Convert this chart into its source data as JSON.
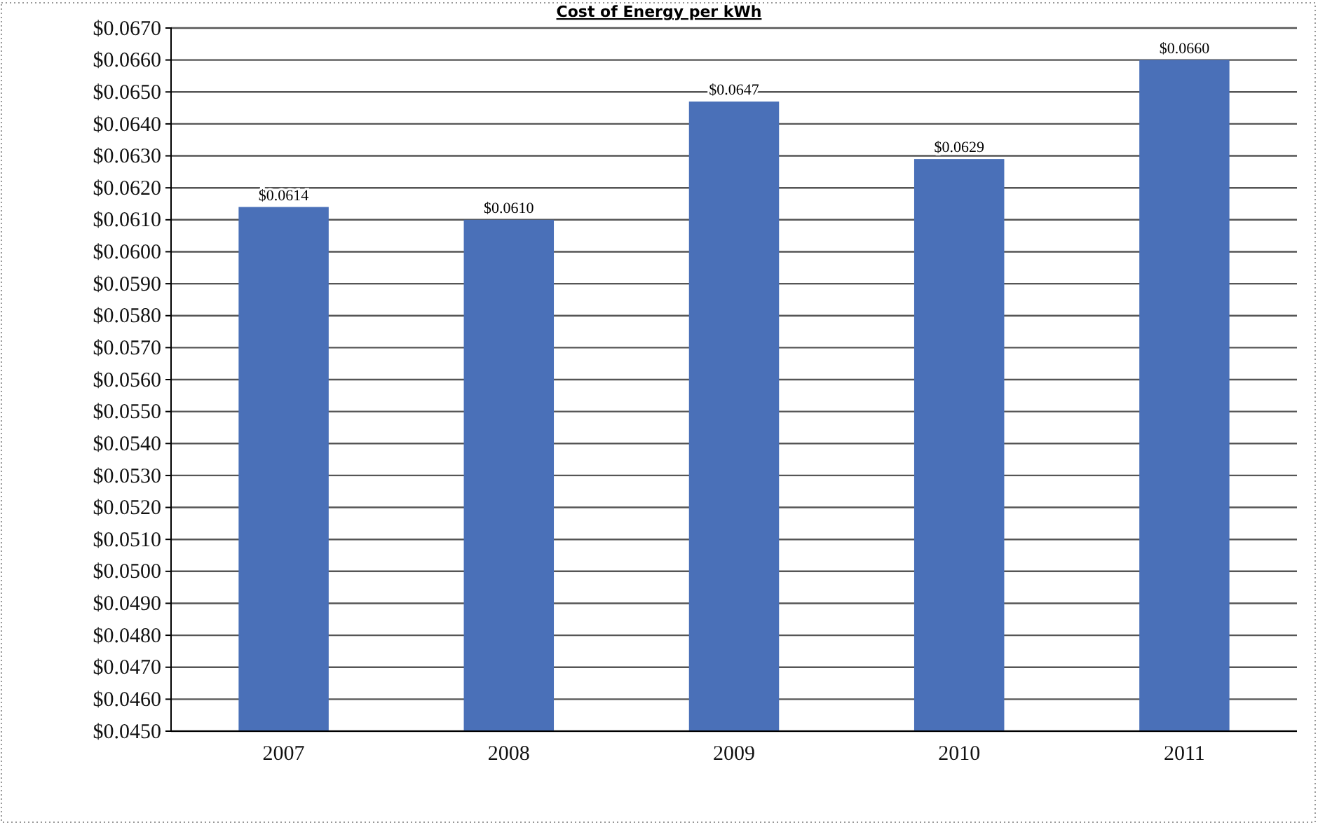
{
  "chart_data": {
    "type": "bar",
    "title": "Cost of Energy per kWh",
    "categories": [
      "2007",
      "2008",
      "2009",
      "2010",
      "2011"
    ],
    "values": [
      0.0614,
      0.061,
      0.0647,
      0.0629,
      0.066
    ],
    "value_labels": [
      "$0.0614",
      "$0.0610",
      "$0.0647",
      "$0.0629",
      "$0.0660"
    ],
    "color": "#4a70b8",
    "ylim": [
      0.045,
      0.067
    ],
    "yticks": [
      {
        "value": 0.045,
        "label": "$0.0450"
      },
      {
        "value": 0.046,
        "label": "$0.0460"
      },
      {
        "value": 0.047,
        "label": "$0.0470"
      },
      {
        "value": 0.048,
        "label": "$0.0480"
      },
      {
        "value": 0.049,
        "label": "$0.0490"
      },
      {
        "value": 0.05,
        "label": "$0.0500"
      },
      {
        "value": 0.051,
        "label": "$0.0510"
      },
      {
        "value": 0.052,
        "label": "$0.0520"
      },
      {
        "value": 0.053,
        "label": "$0.0530"
      },
      {
        "value": 0.054,
        "label": "$0.0540"
      },
      {
        "value": 0.055,
        "label": "$0.0550"
      },
      {
        "value": 0.056,
        "label": "$0.0560"
      },
      {
        "value": 0.057,
        "label": "$0.0570"
      },
      {
        "value": 0.058,
        "label": "$0.0580"
      },
      {
        "value": 0.059,
        "label": "$0.0590"
      },
      {
        "value": 0.06,
        "label": "$0.0600"
      },
      {
        "value": 0.061,
        "label": "$0.0610"
      },
      {
        "value": 0.062,
        "label": "$0.0620"
      },
      {
        "value": 0.063,
        "label": "$0.0630"
      },
      {
        "value": 0.064,
        "label": "$0.0640"
      },
      {
        "value": 0.065,
        "label": "$0.0650"
      },
      {
        "value": 0.066,
        "label": "$0.0660"
      },
      {
        "value": 0.067,
        "label": "$0.0670"
      }
    ],
    "grid": "y"
  }
}
